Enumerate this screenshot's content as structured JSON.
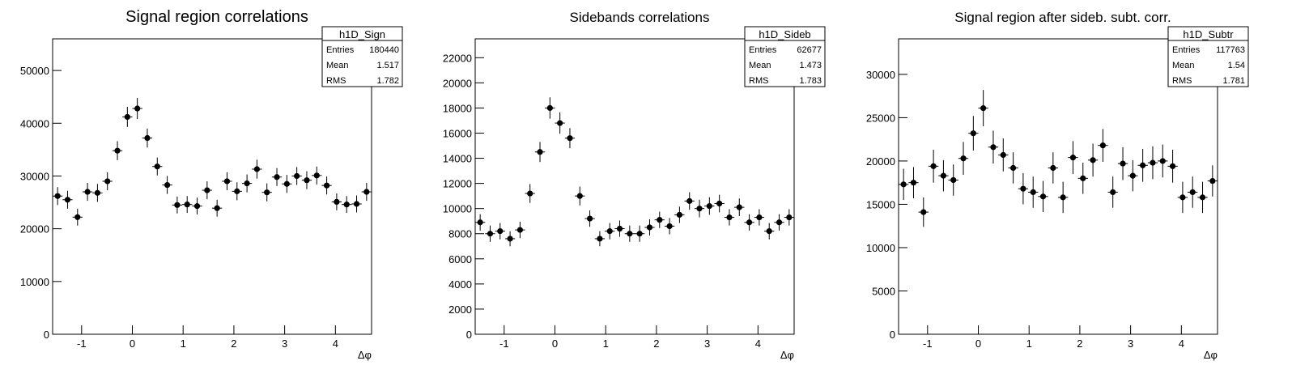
{
  "chart_data": [
    {
      "type": "errorbar",
      "title": "Signal region correlations",
      "x_label": "Δφ",
      "xlim": [
        -1.5708,
        4.7124
      ],
      "xticks": [
        -1,
        0,
        1,
        2,
        3,
        4
      ],
      "ylim": [
        0,
        56000
      ],
      "yticks": [
        0,
        10000,
        20000,
        30000,
        40000,
        50000
      ],
      "color": "#000000",
      "values": [
        26200,
        25500,
        22200,
        27000,
        26800,
        29000,
        34800,
        41200,
        42800,
        37200,
        31800,
        28300,
        24500,
        24600,
        24300,
        27300,
        23900,
        29000,
        27100,
        28600,
        31300,
        26900,
        29800,
        28500,
        30000,
        29200,
        30100,
        28200,
        25100,
        24600,
        24700,
        27000
      ],
      "errors": [
        1700,
        1700,
        1600,
        1700,
        1700,
        1700,
        1800,
        1900,
        2000,
        1800,
        1700,
        1700,
        1600,
        1600,
        1600,
        1700,
        1600,
        1700,
        1700,
        1700,
        1800,
        1700,
        1700,
        1700,
        1700,
        1700,
        1700,
        1700,
        1600,
        1600,
        1600,
        1700
      ],
      "stats": {
        "name": "h1D_Sign",
        "entries_label": "Entries",
        "entries": 180440,
        "mean_label": "Mean",
        "mean": 1.517,
        "rms_label": "RMS",
        "rms": 1.782
      }
    },
    {
      "type": "errorbar",
      "title": "Sidebands correlations",
      "x_label": "Δφ",
      "xlim": [
        -1.5708,
        4.7124
      ],
      "xticks": [
        -1,
        0,
        1,
        2,
        3,
        4
      ],
      "ylim": [
        0,
        23500
      ],
      "yticks": [
        0,
        2000,
        4000,
        6000,
        8000,
        10000,
        12000,
        14000,
        16000,
        18000,
        20000,
        22000
      ],
      "color": "#000000",
      "values": [
        8900,
        8000,
        8200,
        7600,
        8300,
        11200,
        14500,
        18000,
        16800,
        15600,
        11000,
        9200,
        7600,
        8200,
        8400,
        8000,
        8000,
        8500,
        9100,
        8600,
        9500,
        10600,
        10000,
        10200,
        10400,
        9300,
        10100,
        8900,
        9300,
        8200,
        8900,
        9300
      ],
      "errors": [
        650,
        650,
        650,
        600,
        650,
        750,
        800,
        850,
        850,
        800,
        750,
        650,
        600,
        650,
        650,
        650,
        650,
        650,
        650,
        650,
        650,
        700,
        700,
        700,
        700,
        650,
        700,
        650,
        650,
        650,
        650,
        650
      ],
      "stats": {
        "name": "h1D_Sideb",
        "entries_label": "Entries",
        "entries": 62677,
        "mean_label": "Mean",
        "mean": 1.473,
        "rms_label": "RMS",
        "rms": 1.783
      }
    },
    {
      "type": "errorbar",
      "title": "Signal region after sideb. subt. corr.",
      "x_label": "Δφ",
      "xlim": [
        -1.5708,
        4.7124
      ],
      "xticks": [
        -1,
        0,
        1,
        2,
        3,
        4
      ],
      "ylim": [
        0,
        34100
      ],
      "yticks": [
        0,
        5000,
        10000,
        15000,
        20000,
        25000,
        30000
      ],
      "color": "#000000",
      "values": [
        17300,
        17500,
        14100,
        19400,
        18300,
        17800,
        20300,
        23200,
        26100,
        21600,
        20700,
        19200,
        16800,
        16400,
        15900,
        19200,
        15800,
        20400,
        18000,
        20100,
        21800,
        16400,
        19700,
        18300,
        19500,
        19800,
        20000,
        19400,
        15800,
        16400,
        15800,
        17700
      ],
      "errors": [
        1800,
        1800,
        1700,
        1900,
        1800,
        1800,
        1900,
        2000,
        2100,
        1900,
        1900,
        1800,
        1800,
        1800,
        1800,
        1800,
        1800,
        1900,
        1800,
        1900,
        1900,
        1800,
        1900,
        1800,
        1900,
        1900,
        1900,
        1900,
        1800,
        1800,
        1800,
        1800
      ],
      "stats": {
        "name": "h1D_Subtr",
        "entries_label": "Entries",
        "entries": 117763,
        "mean_label": "Mean",
        "mean": 1.54,
        "rms_label": "RMS",
        "rms": 1.781
      }
    }
  ]
}
